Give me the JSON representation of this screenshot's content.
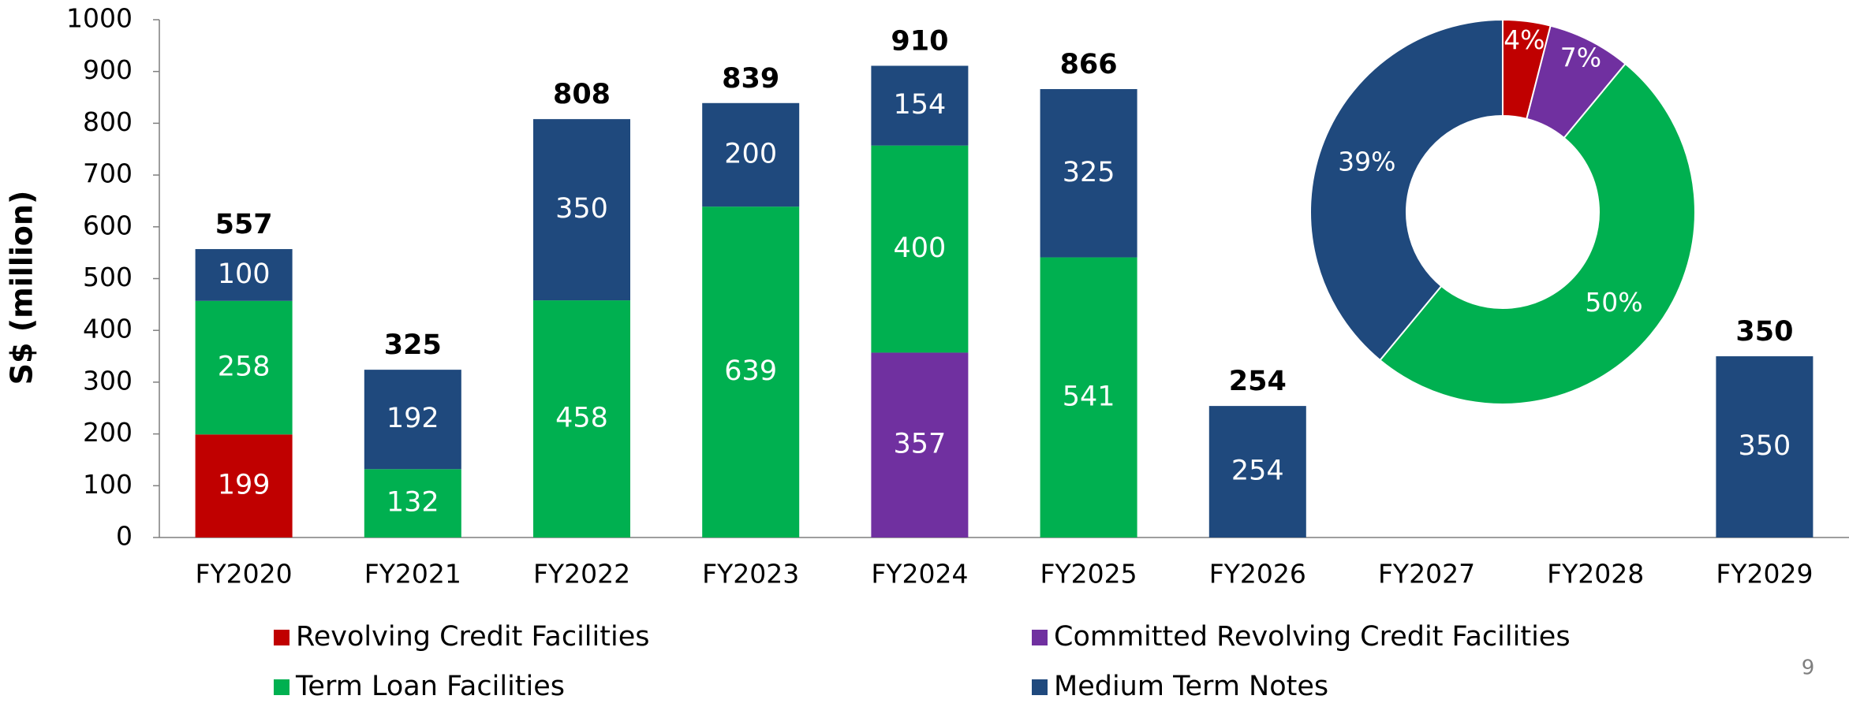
{
  "chart_data": [
    {
      "type": "bar",
      "stacked": true,
      "ylabel": "S$ (million)",
      "categories": [
        "FY2020",
        "FY2021",
        "FY2022",
        "FY2023",
        "FY2024",
        "FY2025",
        "FY2026",
        "FY2027",
        "FY2028",
        "FY2029"
      ],
      "series": [
        {
          "name": "Revolving Credit Facilities",
          "color": "#c00000",
          "values": [
            199,
            null,
            null,
            null,
            null,
            null,
            null,
            null,
            null,
            null
          ]
        },
        {
          "name": "Committed Revolving Credit Facilities",
          "color": "#7030a0",
          "values": [
            null,
            null,
            null,
            null,
            357,
            null,
            null,
            null,
            null,
            null
          ]
        },
        {
          "name": "Term Loan Facilities",
          "color": "#00b050",
          "values": [
            258,
            132,
            458,
            639,
            400,
            541,
            null,
            null,
            null,
            null
          ]
        },
        {
          "name": "Medium Term Notes",
          "color": "#1f497d",
          "values": [
            100,
            192,
            350,
            200,
            154,
            325,
            254,
            null,
            null,
            350
          ]
        }
      ],
      "totals": [
        557,
        325,
        808,
        839,
        910,
        866,
        254,
        null,
        null,
        350
      ],
      "ylim": [
        0,
        1000
      ],
      "yticks": [
        0,
        100,
        200,
        300,
        400,
        500,
        600,
        700,
        800,
        900,
        1000
      ],
      "grid": false
    },
    {
      "type": "pie",
      "donut": true,
      "values": [
        4,
        7,
        50,
        39
      ],
      "value_labels": [
        "4%",
        "7%",
        "50%",
        "39%"
      ],
      "colors": [
        "#c00000",
        "#7030a0",
        "#00b050",
        "#1f497d"
      ]
    }
  ],
  "page_number": "9"
}
